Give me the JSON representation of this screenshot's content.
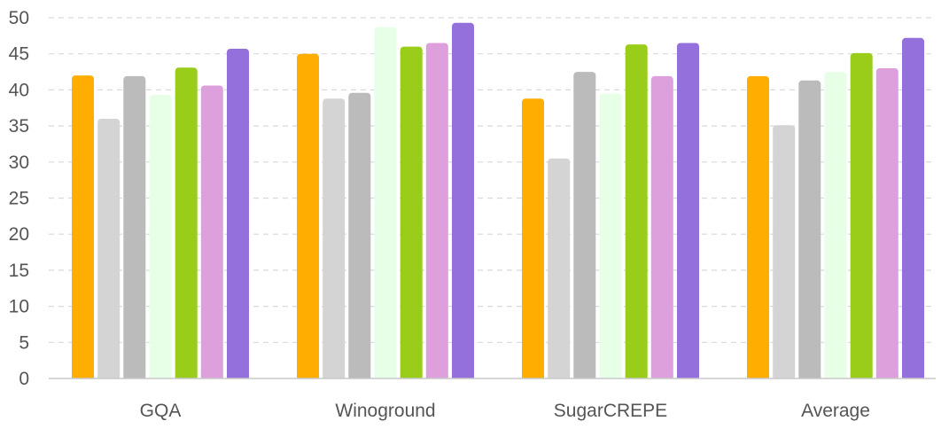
{
  "chart_data": {
    "type": "bar",
    "categories": [
      "GQA",
      "Winoground",
      "SugarCREPE",
      "Average"
    ],
    "series": [
      {
        "color": "#FFAE00",
        "values": [
          42.0,
          45.0,
          38.8,
          41.9
        ]
      },
      {
        "color": "#D4D4D4",
        "values": [
          36.0,
          38.8,
          30.5,
          35.1
        ]
      },
      {
        "color": "#BBBBBB",
        "values": [
          41.9,
          39.6,
          42.5,
          41.3
        ]
      },
      {
        "color": "#E6FFE6",
        "values": [
          39.3,
          48.7,
          39.5,
          42.5
        ]
      },
      {
        "color": "#9ACD1A",
        "values": [
          43.1,
          46.0,
          46.3,
          45.1
        ]
      },
      {
        "color": "#DDA0DD",
        "values": [
          40.6,
          46.5,
          41.9,
          43.0
        ]
      },
      {
        "color": "#9370DB",
        "values": [
          45.7,
          49.3,
          46.5,
          47.2
        ]
      }
    ],
    "y_ticks": [
      "0",
      "5",
      "10",
      "15",
      "20",
      "25",
      "30",
      "35",
      "40",
      "45",
      "50"
    ],
    "ylim": [
      0,
      50
    ],
    "grid": true,
    "legend": "none"
  }
}
